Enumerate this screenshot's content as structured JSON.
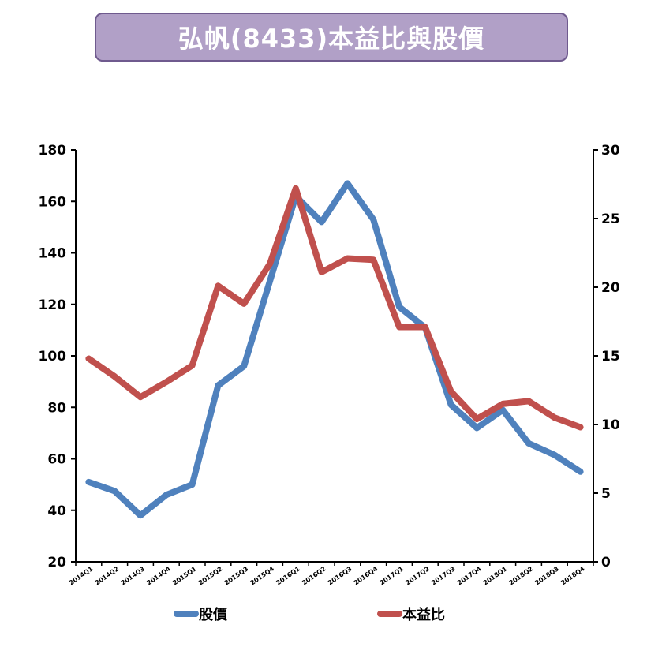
{
  "title": "弘帆(8433)本益比與股價",
  "chart_data": {
    "type": "line",
    "categories": [
      "2014Q1",
      "2014Q2",
      "2014Q3",
      "2014Q4",
      "2015Q1",
      "2015Q2",
      "2015Q3",
      "2015Q4",
      "2016Q1",
      "2016Q2",
      "2016Q3",
      "2016Q4",
      "2017Q1",
      "2017Q2",
      "2017Q3",
      "2017Q4",
      "2018Q1",
      "2018Q2",
      "2018Q3",
      "2018Q4"
    ],
    "series": [
      {
        "name": "股價",
        "axis": "left",
        "color": "#4f81bd",
        "values": [
          51,
          47.5,
          38,
          46,
          50,
          88.5,
          96,
          129,
          162,
          152,
          167,
          153,
          119,
          111,
          81,
          72,
          79,
          66,
          61.5,
          55
        ]
      },
      {
        "name": "本益比",
        "axis": "right",
        "color": "#c0504d",
        "values": [
          14.8,
          13.5,
          12,
          13.1,
          14.3,
          20.1,
          18.8,
          21.7,
          27.2,
          21.1,
          22.1,
          22,
          17.1,
          17.1,
          12.4,
          10.4,
          11.5,
          11.7,
          10.5,
          9.8
        ]
      }
    ],
    "y_left": {
      "min": 20,
      "max": 180,
      "ticks": [
        "20",
        "40",
        "60",
        "80",
        "100",
        "120",
        "140",
        "160",
        "180"
      ]
    },
    "y_right": {
      "min": 0,
      "max": 30,
      "ticks": [
        "0",
        "5",
        "10",
        "15",
        "20",
        "25",
        "30"
      ]
    },
    "grid": false,
    "legend_position": "bottom"
  }
}
